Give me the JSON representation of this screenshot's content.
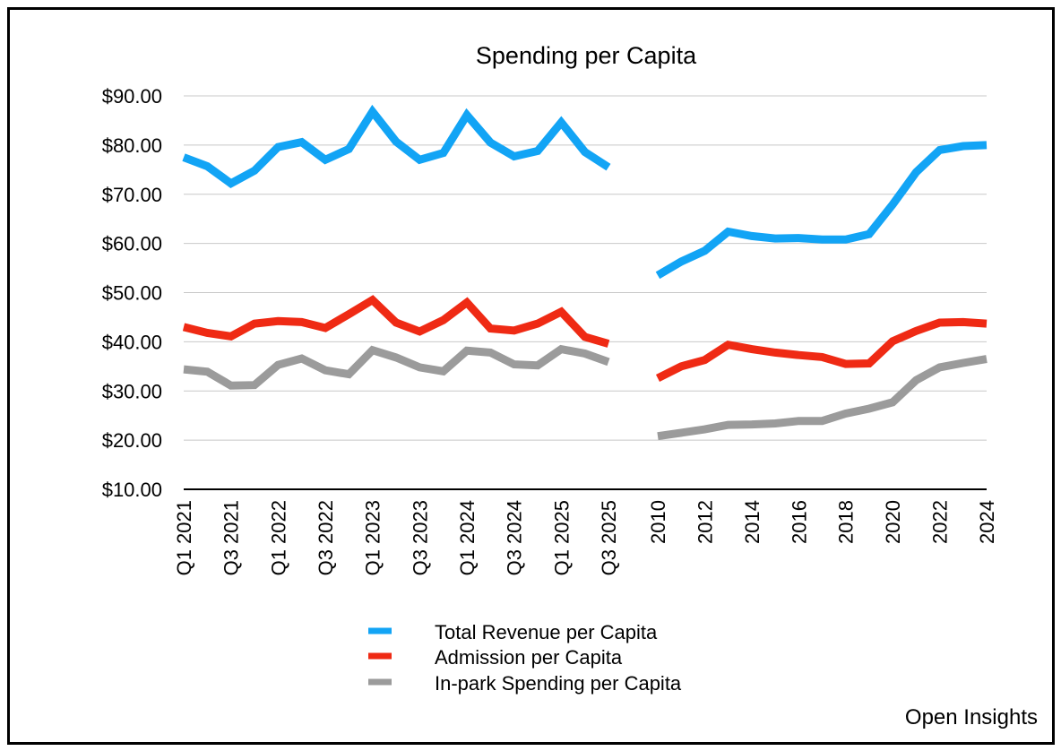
{
  "chart_data": {
    "type": "line",
    "title": "Spending per Capita",
    "source": "Open Insights",
    "yaxis": {
      "min": 10,
      "max": 90,
      "step": 10,
      "format": "currency"
    },
    "ytick_labels": [
      "$10.00",
      "$20.00",
      "$30.00",
      "$40.00",
      "$50.00",
      "$60.00",
      "$70.00",
      "$80.00",
      "$90.00"
    ],
    "xlabel": "",
    "ylabel": "",
    "legend_position": "bottom-center",
    "panels": [
      {
        "name": "quarterly",
        "categories": [
          "Q1 2021",
          "Q2 2021",
          "Q3 2021",
          "Q4 2021",
          "Q1 2022",
          "Q2 2022",
          "Q3 2022",
          "Q4 2022",
          "Q1 2023",
          "Q2 2023",
          "Q3 2023",
          "Q4 2023",
          "Q1 2024",
          "Q2 2024",
          "Q3 2024",
          "Q4 2024",
          "Q1 2025",
          "Q2 2025",
          "Q3 2025"
        ],
        "tick_labels": [
          "Q1 2021",
          "Q3 2021",
          "Q1 2022",
          "Q3 2022",
          "Q1 2023",
          "Q3 2023",
          "Q1 2024",
          "Q3 2024",
          "Q1 2025",
          "Q3 2025"
        ],
        "series": [
          {
            "name": "Total Revenue per Capita",
            "values": [
              77.5,
              75.7,
              72.2,
              74.8,
              79.6,
              80.6,
              77.0,
              79.2,
              86.8,
              80.7,
              77.0,
              78.4,
              86.1,
              80.5,
              77.7,
              78.8,
              84.6,
              78.6,
              75.5
            ]
          },
          {
            "name": "Admission per Capita",
            "values": [
              43.0,
              41.8,
              41.1,
              43.7,
              44.2,
              44.0,
              42.8,
              45.6,
              48.5,
              43.9,
              42.1,
              44.4,
              48.0,
              42.7,
              42.3,
              43.7,
              46.1,
              41.0,
              39.6
            ]
          },
          {
            "name": "In-park Spending per Capita",
            "values": [
              34.4,
              33.9,
              31.1,
              31.2,
              35.3,
              36.6,
              34.2,
              33.4,
              38.3,
              36.8,
              34.8,
              34.0,
              38.2,
              37.8,
              35.4,
              35.2,
              38.5,
              37.6,
              35.9
            ]
          }
        ]
      },
      {
        "name": "annual",
        "categories": [
          "2010",
          "2011",
          "2012",
          "2013",
          "2014",
          "2015",
          "2016",
          "2017",
          "2018",
          "2019",
          "2020",
          "2021",
          "2022",
          "2023",
          "2024"
        ],
        "tick_labels": [
          "2010",
          "2012",
          "2014",
          "2016",
          "2018",
          "2020",
          "2022",
          "2024"
        ],
        "series": [
          {
            "name": "Total Revenue per Capita",
            "values": [
              53.5,
              56.3,
              58.5,
              62.4,
              61.5,
              61.0,
              61.1,
              60.8,
              60.8,
              61.9,
              67.9,
              74.5,
              79.0,
              79.8,
              80.0
            ]
          },
          {
            "name": "Admission per Capita",
            "values": [
              32.6,
              35.0,
              36.3,
              39.4,
              38.5,
              37.8,
              37.3,
              36.9,
              35.5,
              35.6,
              40.1,
              42.2,
              43.9,
              44.0,
              43.7
            ]
          },
          {
            "name": "In-park Spending per Capita",
            "values": [
              20.8,
              21.5,
              22.2,
              23.1,
              23.2,
              23.4,
              23.9,
              23.9,
              25.4,
              26.4,
              27.7,
              32.2,
              34.8,
              35.7,
              36.5
            ]
          }
        ]
      }
    ]
  },
  "colors": {
    "Total Revenue per Capita": "#12a4f5",
    "Admission per Capita": "#ef2a14",
    "In-park Spending per Capita": "#9b9b9b",
    "grid": "#c8c8c8",
    "axis": "#000000"
  }
}
